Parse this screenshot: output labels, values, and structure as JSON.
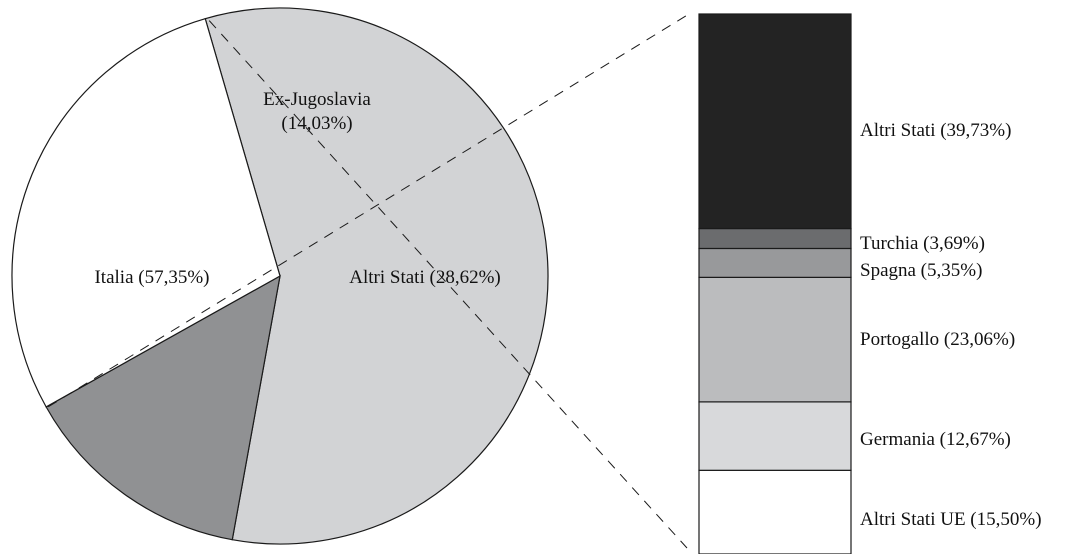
{
  "chart_data": [
    {
      "type": "pie",
      "categories": [
        "Italia",
        "Ex-Jugoslavia",
        "Altri Stati"
      ],
      "values": [
        57.35,
        14.03,
        28.62
      ],
      "labels": [
        {
          "lines": [
            "Italia (57,35%)"
          ]
        },
        {
          "lines": [
            "Ex-Jugoslavia",
            "(14,03%)"
          ]
        },
        {
          "lines": [
            "Altri Stati (28,62%)"
          ]
        }
      ],
      "colors": [
        "#d2d3d5",
        "#909193",
        "#ffffff"
      ],
      "exploded_slice": "Altri Stati"
    },
    {
      "type": "bar",
      "stacked": true,
      "categories": [
        "Altri Stati UE",
        "Germania",
        "Portogallo",
        "Spagna",
        "Turchia",
        "Altri Stati"
      ],
      "values": [
        15.5,
        12.67,
        23.06,
        5.35,
        3.69,
        39.73
      ],
      "labels": [
        "Altri Stati UE (15,50%)",
        "Germania (12,67%)",
        "Portogallo (23,06%)",
        "Spagna (5,35%)",
        "Turchia (3,69%)",
        "Altri Stati (39,73%)"
      ],
      "colors": [
        "#ffffff",
        "#d8d9db",
        "#bbbcbe",
        "#98999b",
        "#6b6c6e",
        "#232323"
      ]
    }
  ]
}
